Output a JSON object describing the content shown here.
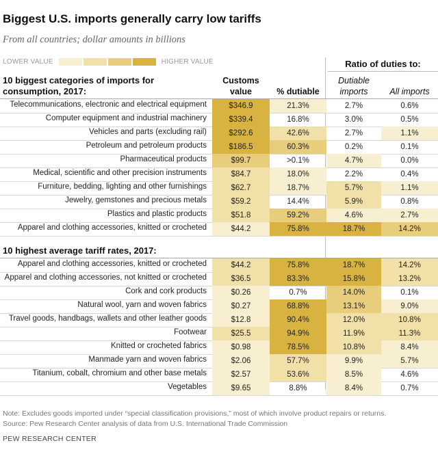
{
  "title": "Biggest U.S. imports generally carry low tariffs",
  "subtitle": "From all countries; dollar amounts in billions",
  "legend": {
    "low_label": "LOWER VALUE",
    "high_label": "HIGHER VALUE",
    "colors": [
      "#f8eed0",
      "#f1e1a9",
      "#e7cd7c",
      "#d9b341"
    ]
  },
  "ratio_header": "Ratio of duties to:",
  "columns": {
    "customs_value": "Customs value",
    "pct_dutiable": "% dutiable",
    "dutiable_imports": "Dutiable imports",
    "all_imports": "All imports"
  },
  "chart_data": [
    {
      "type": "table",
      "title": "10 biggest categories of imports for consumption, 2017:",
      "columns": [
        "Customs value",
        "% dutiable",
        "Dutiable imports",
        "All imports"
      ],
      "rows": [
        {
          "label": "Telecommunications, electronic and electrical equipment",
          "customs_value": "$346.9",
          "pct_dutiable": "21.3%",
          "dutiable_imports": "2.7%",
          "all_imports": "0.6%",
          "shades": [
            4,
            1,
            0,
            0
          ]
        },
        {
          "label": "Computer equipment and industrial machinery",
          "customs_value": "$339.4",
          "pct_dutiable": "16.8%",
          "dutiable_imports": "3.0%",
          "all_imports": "0.5%",
          "shades": [
            4,
            0,
            0,
            0
          ]
        },
        {
          "label": "Vehicles and parts (excluding rail)",
          "customs_value": "$292.6",
          "pct_dutiable": "42.6%",
          "dutiable_imports": "2.7%",
          "all_imports": "1.1%",
          "shades": [
            4,
            2,
            0,
            1
          ]
        },
        {
          "label": "Petroleum and petroleum products",
          "customs_value": "$186.5",
          "pct_dutiable": "60.3%",
          "dutiable_imports": "0.2%",
          "all_imports": "0.1%",
          "shades": [
            4,
            3,
            0,
            0
          ]
        },
        {
          "label": "Pharmaceutical products",
          "customs_value": "$99.7",
          "pct_dutiable": ">0.1%",
          "dutiable_imports": "4.7%",
          "all_imports": "0.0%",
          "shades": [
            3,
            0,
            1,
            0
          ]
        },
        {
          "label": "Medical, scientific and other precision instruments",
          "customs_value": "$84.7",
          "pct_dutiable": "18.0%",
          "dutiable_imports": "2.2%",
          "all_imports": "0.4%",
          "shades": [
            2,
            1,
            0,
            0
          ]
        },
        {
          "label": "Furniture, bedding, lighting and other furnishings",
          "customs_value": "$62.7",
          "pct_dutiable": "18.7%",
          "dutiable_imports": "5.7%",
          "all_imports": "1.1%",
          "shades": [
            2,
            1,
            2,
            1
          ]
        },
        {
          "label": "Jewelry, gemstones and precious metals",
          "customs_value": "$59.2",
          "pct_dutiable": "14.4%",
          "dutiable_imports": "5.9%",
          "all_imports": "0.8%",
          "shades": [
            2,
            0,
            2,
            0
          ]
        },
        {
          "label": "Plastics and plastic products",
          "customs_value": "$51.8",
          "pct_dutiable": "59.2%",
          "dutiable_imports": "4.6%",
          "all_imports": "2.7%",
          "shades": [
            2,
            3,
            1,
            1
          ]
        },
        {
          "label": "Apparel and clothing accessories, knitted or crocheted",
          "customs_value": "$44.2",
          "pct_dutiable": "75.8%",
          "dutiable_imports": "18.7%",
          "all_imports": "14.2%",
          "shades": [
            1,
            4,
            4,
            3
          ]
        }
      ]
    },
    {
      "type": "table",
      "title": "10 highest average tariff rates, 2017:",
      "columns": [
        "Customs value",
        "% dutiable",
        "Dutiable imports",
        "All imports"
      ],
      "rows": [
        {
          "label": "Apparel and clothing accessories, knitted or crocheted",
          "customs_value": "$44.2",
          "pct_dutiable": "75.8%",
          "dutiable_imports": "18.7%",
          "all_imports": "14.2%",
          "shades": [
            2,
            4,
            4,
            2
          ]
        },
        {
          "label": "Apparel and clothing accessories, not knitted or crocheted",
          "customs_value": "$36.5",
          "pct_dutiable": "83.3%",
          "dutiable_imports": "15.8%",
          "all_imports": "13.2%",
          "shades": [
            2,
            4,
            4,
            2
          ]
        },
        {
          "label": "Cork and cork products",
          "customs_value": "$0.26",
          "pct_dutiable": "0.7%",
          "dutiable_imports": "14.0%",
          "all_imports": "0.1%",
          "shades": [
            1,
            0,
            3,
            0
          ]
        },
        {
          "label": "Natural wool, yarn and woven fabrics",
          "customs_value": "$0.27",
          "pct_dutiable": "68.8%",
          "dutiable_imports": "13.1%",
          "all_imports": "9.0%",
          "shades": [
            1,
            4,
            3,
            1
          ]
        },
        {
          "label": "Travel goods, handbags, wallets and other leather goods",
          "customs_value": "$12.8",
          "pct_dutiable": "90.4%",
          "dutiable_imports": "12.0%",
          "all_imports": "10.8%",
          "shades": [
            1,
            4,
            2,
            2
          ]
        },
        {
          "label": "Footwear",
          "customs_value": "$25.5",
          "pct_dutiable": "94.9%",
          "dutiable_imports": "11.9%",
          "all_imports": "11.3%",
          "shades": [
            2,
            4,
            2,
            2
          ]
        },
        {
          "label": "Knitted or crocheted fabrics",
          "customs_value": "$0.98",
          "pct_dutiable": "78.5%",
          "dutiable_imports": "10.8%",
          "all_imports": "8.4%",
          "shades": [
            1,
            4,
            2,
            1
          ]
        },
        {
          "label": "Manmade yarn and woven fabrics",
          "customs_value": "$2.06",
          "pct_dutiable": "57.7%",
          "dutiable_imports": "9.9%",
          "all_imports": "5.7%",
          "shades": [
            1,
            2,
            1,
            1
          ]
        },
        {
          "label": "Titanium, cobalt, chromium and other base metals",
          "customs_value": "$2.57",
          "pct_dutiable": "53.6%",
          "dutiable_imports": "8.5%",
          "all_imports": "4.6%",
          "shades": [
            1,
            2,
            1,
            0
          ]
        },
        {
          "label": "Vegetables",
          "customs_value": "$9.65",
          "pct_dutiable": "8.8%",
          "dutiable_imports": "8.4%",
          "all_imports": "0.7%",
          "shades": [
            1,
            0,
            1,
            0
          ]
        }
      ]
    }
  ],
  "notes": {
    "note": "Note: Excludes goods imported under “special classification provisions,” most of which involve product repairs or returns.",
    "source": "Source: Pew Research Center analysis of data from U.S. International Trade Commission"
  },
  "brand": "PEW RESEARCH CENTER"
}
